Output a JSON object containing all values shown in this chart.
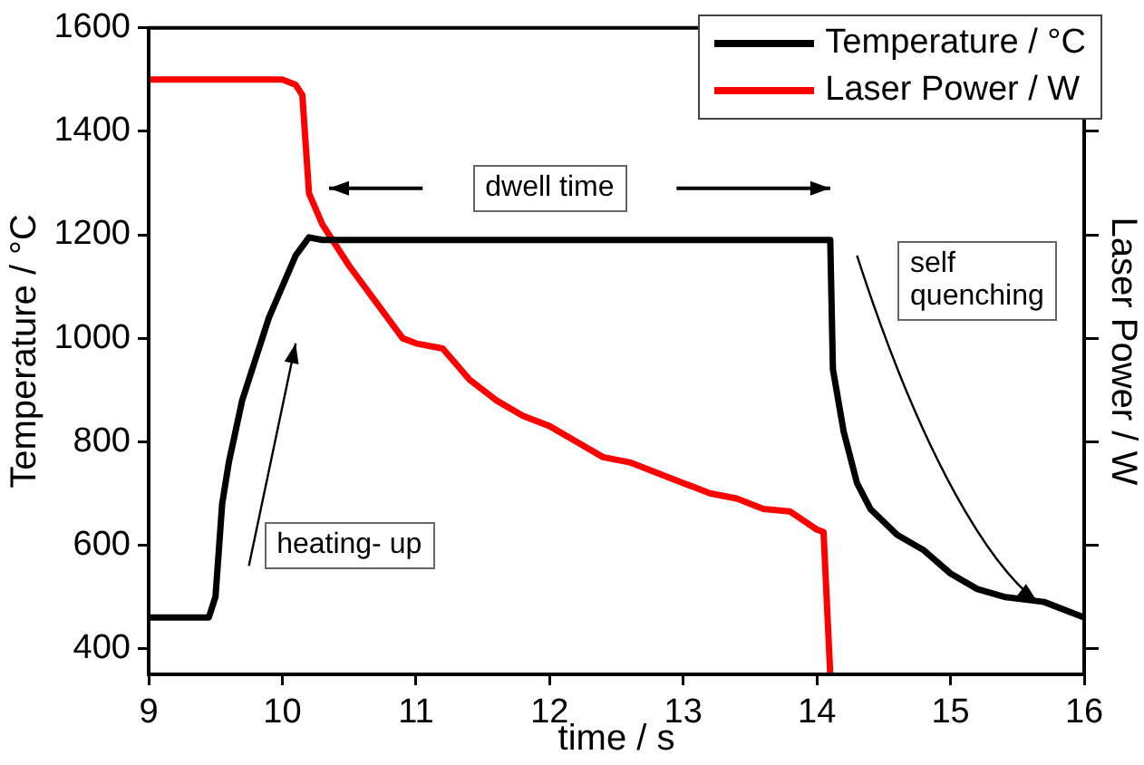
{
  "chart_data": {
    "type": "line",
    "xlabel": "time / s",
    "ylabel": "Temperature / °C",
    "y2label": "Laser Power / W",
    "xlim": [
      9,
      16
    ],
    "xticks": [
      9,
      10,
      11,
      12,
      13,
      14,
      15,
      16
    ],
    "ylim": [
      350,
      1600
    ],
    "yticks": [
      400,
      600,
      800,
      1000,
      1200,
      1400,
      1600
    ],
    "grid": false,
    "legend": "top right",
    "marker": "none",
    "line_style": "solid",
    "annotations": [
      "dwell time",
      "heating- up",
      "self\nquenching"
    ],
    "series": [
      {
        "name": "Temperature / °C",
        "color": "#000000",
        "x": [
          9,
          9.45,
          9.5,
          9.55,
          9.6,
          9.7,
          9.8,
          9.9,
          10.0,
          10.1,
          10.2,
          10.3,
          11,
          12,
          13,
          14.1,
          14.12,
          14.2,
          14.3,
          14.4,
          14.6,
          14.8,
          15.0,
          15.2,
          15.4,
          15.7,
          16
        ],
        "values": [
          460,
          460,
          500,
          680,
          760,
          880,
          960,
          1040,
          1100,
          1160,
          1195,
          1190,
          1190,
          1190,
          1190,
          1190,
          940,
          820,
          720,
          670,
          620,
          590,
          545,
          515,
          500,
          490,
          460
        ]
      },
      {
        "name": "Laser Power / W",
        "color": "#ff0000",
        "x": [
          9,
          10.0,
          10.1,
          10.15,
          10.2,
          10.3,
          10.5,
          10.7,
          10.9,
          11.0,
          11.2,
          11.4,
          11.6,
          11.8,
          12.0,
          12.2,
          12.4,
          12.6,
          12.8,
          13.0,
          13.2,
          13.4,
          13.6,
          13.8,
          14.0,
          14.05,
          14.1
        ],
        "values": [
          1500,
          1500,
          1490,
          1470,
          1280,
          1220,
          1140,
          1070,
          1000,
          990,
          980,
          920,
          880,
          850,
          830,
          800,
          770,
          760,
          740,
          720,
          700,
          690,
          670,
          665,
          630,
          625,
          350
        ]
      }
    ]
  }
}
